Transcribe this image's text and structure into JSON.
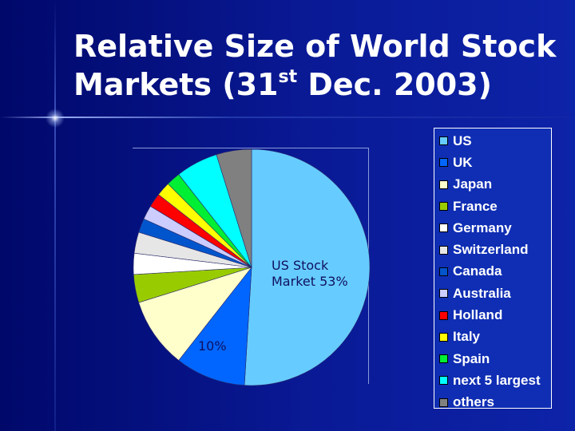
{
  "slide": {
    "title_line1": "Relative Size of World Stock",
    "title_line2_prefix": "Markets (31",
    "title_line2_sup": "st",
    "title_line2_suffix": " Dec. 2003)"
  },
  "chart_data": {
    "type": "pie",
    "title": "",
    "categories": [
      "US",
      "UK",
      "Japan",
      "France",
      "Germany",
      "Switzerland",
      "Canada",
      "Australia",
      "Holland",
      "Italy",
      "Spain",
      "next 5 largest",
      "others"
    ],
    "values": [
      53,
      10,
      10,
      4,
      3,
      3,
      2,
      2,
      2,
      2,
      2,
      6,
      5
    ],
    "colors": [
      "#66ccff",
      "#0066ff",
      "#ffffcc",
      "#99cc00",
      "#ffffff",
      "#e6e6e6",
      "#0055cc",
      "#ccccff",
      "#ff0000",
      "#ffff00",
      "#00ee33",
      "#00ffff",
      "#808080"
    ],
    "start_angle_deg": 0,
    "direction": "clockwise",
    "legend_position": "right",
    "data_labels": [
      {
        "category": "US",
        "text": "US Stock Market 53%"
      },
      {
        "category": "UK",
        "text": "10%"
      }
    ]
  }
}
